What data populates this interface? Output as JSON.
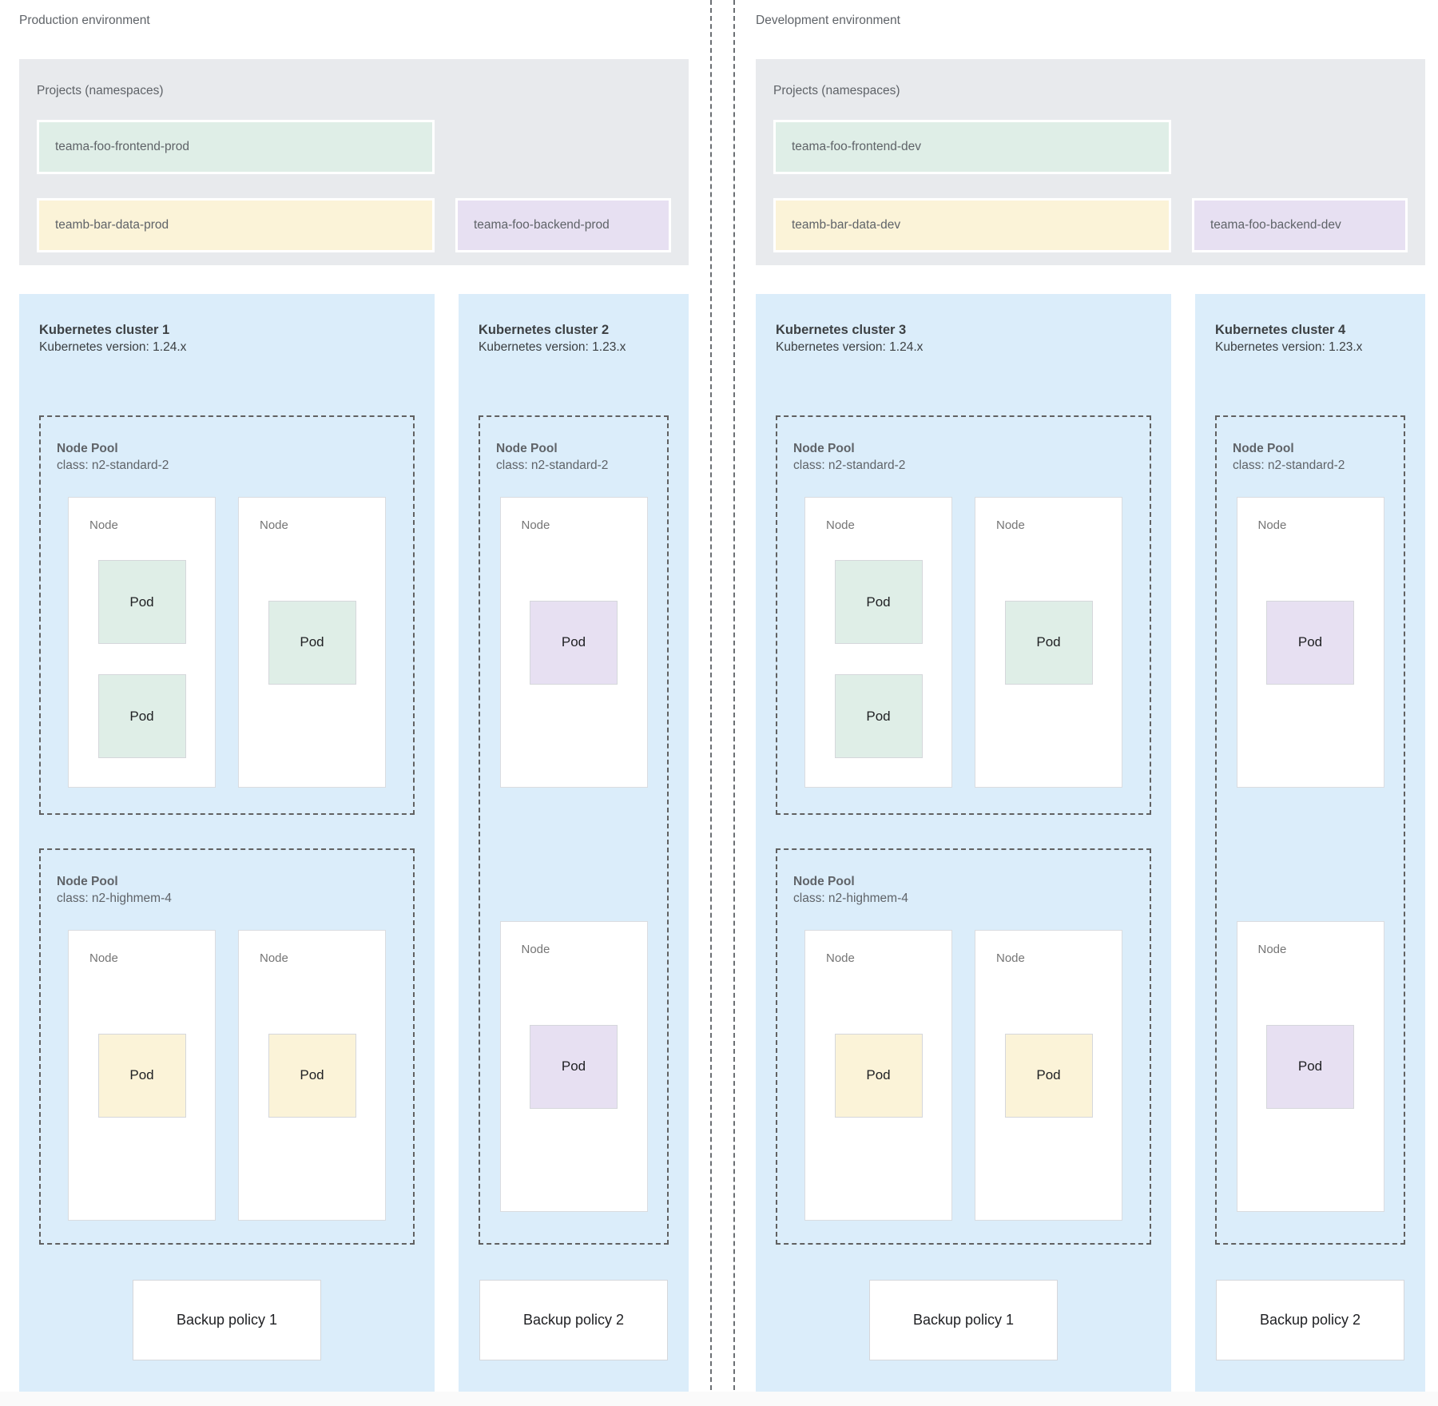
{
  "colors": {
    "page_bg": "#ffffff",
    "projects_bg": "#e8eaed",
    "cluster_bg": "#dbedfa",
    "namespace_green": "#dfeee7",
    "namespace_yellow": "#fbf3d8",
    "namespace_purple": "#e7e0f2",
    "pod_green": "#dfeee7",
    "pod_yellow": "#fbf3d8",
    "pod_purple": "#e7e0f2",
    "node_bg": "#ffffff",
    "dashed_border": "#616161",
    "separator": "#6b6f73",
    "label_gray": "#5f6368",
    "title_dark": "#3c4043"
  },
  "environments": [
    {
      "label": "Production environment",
      "projects": {
        "title": "Projects (namespaces)",
        "items": [
          {
            "name": "teama-foo-frontend-prod",
            "color": "#dfeee7"
          },
          {
            "name": "teamb-bar-data-prod",
            "color": "#fbf3d8"
          },
          {
            "name": "teama-foo-backend-prod",
            "color": "#e7e0f2"
          }
        ]
      },
      "clusters": [
        {
          "title": "Kubernetes cluster 1",
          "version": "Kubernetes version: 1.24.x",
          "backup": "Backup policy 1",
          "pools": [
            {
              "title": "Node Pool",
              "class_label": "class: n2-standard-2",
              "nodes": [
                {
                  "label": "Node",
                  "pods": [
                    {
                      "label": "Pod",
                      "color": "#dfeee7"
                    },
                    {
                      "label": "Pod",
                      "color": "#dfeee7"
                    }
                  ]
                },
                {
                  "label": "Node",
                  "pods": [
                    {
                      "label": "Pod",
                      "color": "#dfeee7"
                    }
                  ]
                }
              ]
            },
            {
              "title": "Node Pool",
              "class_label": "class: n2-highmem-4",
              "nodes": [
                {
                  "label": "Node",
                  "pods": [
                    {
                      "label": "Pod",
                      "color": "#fbf3d8"
                    }
                  ]
                },
                {
                  "label": "Node",
                  "pods": [
                    {
                      "label": "Pod",
                      "color": "#fbf3d8"
                    }
                  ]
                }
              ]
            }
          ]
        },
        {
          "title": "Kubernetes cluster 2",
          "version": "Kubernetes version: 1.23.x",
          "backup": "Backup policy 2",
          "pools": [
            {
              "title": "Node Pool",
              "class_label": "class: n2-standard-2",
              "nodes": [
                {
                  "label": "Node",
                  "pods": [
                    {
                      "label": "Pod",
                      "color": "#e7e0f2"
                    }
                  ]
                },
                {
                  "label": "Node",
                  "pods": [
                    {
                      "label": "Pod",
                      "color": "#e7e0f2"
                    }
                  ]
                }
              ]
            }
          ]
        }
      ]
    },
    {
      "label": "Development environment",
      "projects": {
        "title": "Projects (namespaces)",
        "items": [
          {
            "name": "teama-foo-frontend-dev",
            "color": "#dfeee7"
          },
          {
            "name": "teamb-bar-data-dev",
            "color": "#fbf3d8"
          },
          {
            "name": "teama-foo-backend-dev",
            "color": "#e7e0f2"
          }
        ]
      },
      "clusters": [
        {
          "title": "Kubernetes cluster 3",
          "version": "Kubernetes version: 1.24.x",
          "backup": "Backup policy 1",
          "pools": [
            {
              "title": "Node Pool",
              "class_label": "class: n2-standard-2",
              "nodes": [
                {
                  "label": "Node",
                  "pods": [
                    {
                      "label": "Pod",
                      "color": "#dfeee7"
                    },
                    {
                      "label": "Pod",
                      "color": "#dfeee7"
                    }
                  ]
                },
                {
                  "label": "Node",
                  "pods": [
                    {
                      "label": "Pod",
                      "color": "#dfeee7"
                    }
                  ]
                }
              ]
            },
            {
              "title": "Node Pool",
              "class_label": "class: n2-highmem-4",
              "nodes": [
                {
                  "label": "Node",
                  "pods": [
                    {
                      "label": "Pod",
                      "color": "#fbf3d8"
                    }
                  ]
                },
                {
                  "label": "Node",
                  "pods": [
                    {
                      "label": "Pod",
                      "color": "#fbf3d8"
                    }
                  ]
                }
              ]
            }
          ]
        },
        {
          "title": "Kubernetes cluster 4",
          "version": "Kubernetes version: 1.23.x",
          "backup": "Backup policy 2",
          "pools": [
            {
              "title": "Node Pool",
              "class_label": "class: n2-standard-2",
              "nodes": [
                {
                  "label": "Node",
                  "pods": [
                    {
                      "label": "Pod",
                      "color": "#e7e0f2"
                    }
                  ]
                },
                {
                  "label": "Node",
                  "pods": [
                    {
                      "label": "Pod",
                      "color": "#e7e0f2"
                    }
                  ]
                }
              ]
            }
          ]
        }
      ]
    }
  ]
}
